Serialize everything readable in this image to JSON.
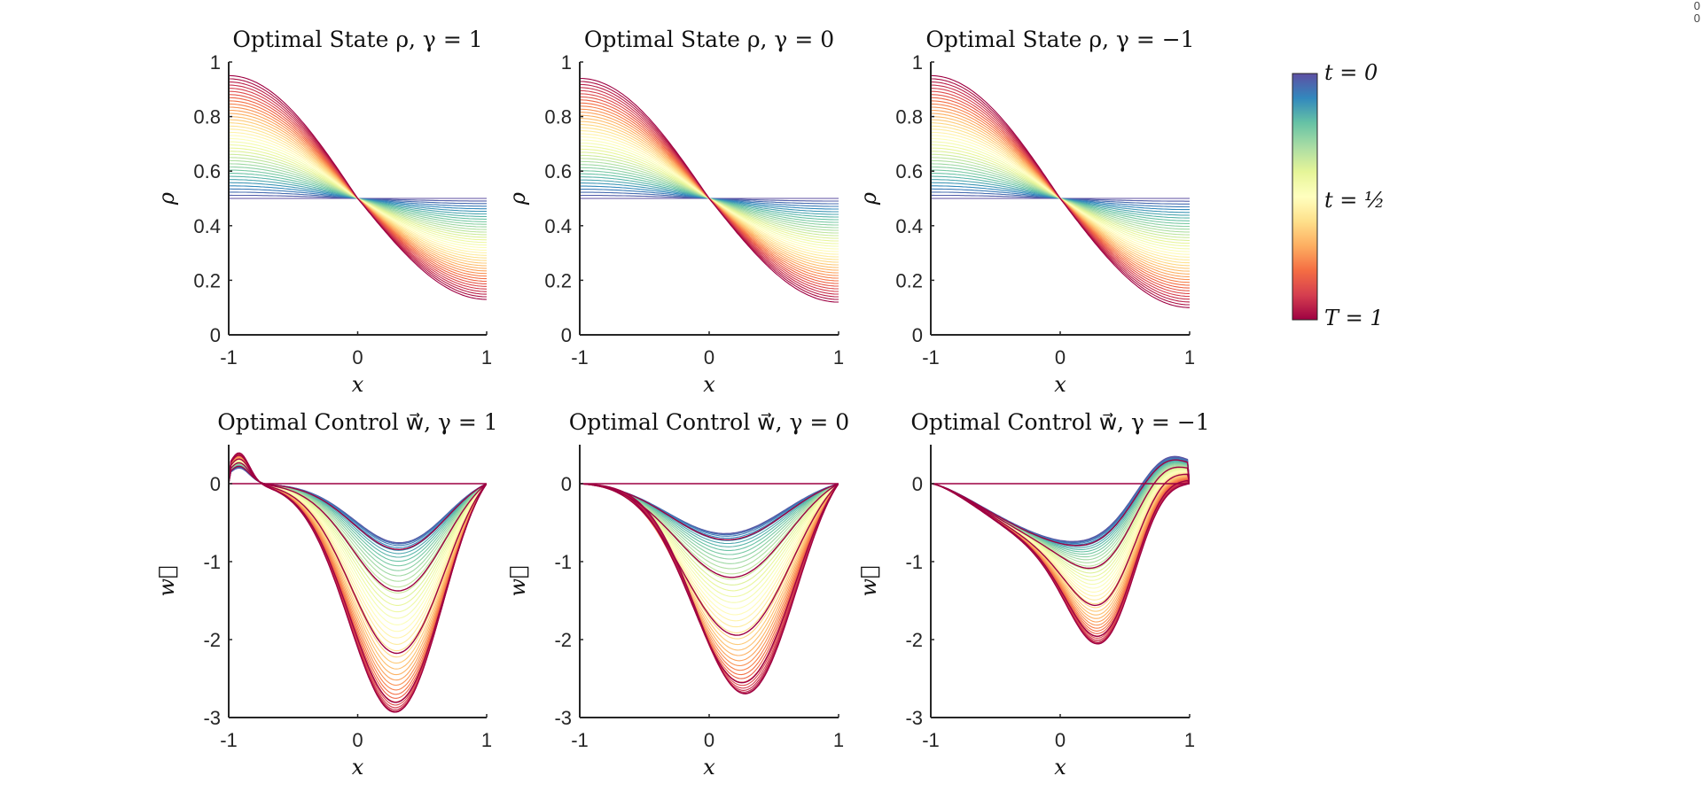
{
  "colormap": [
    "#5e4fa2",
    "#3288bd",
    "#66c2a5",
    "#abdda4",
    "#e6f598",
    "#ffffbf",
    "#fee08b",
    "#fdae61",
    "#f46d43",
    "#d53e4f",
    "#9e0142"
  ],
  "colorbar": {
    "labels": [
      "t = 0",
      "t = ½",
      "T = 1"
    ]
  },
  "corner_marks": [
    "0",
    "0"
  ],
  "chart_data": [
    {
      "type": "line",
      "title": "Optimal State ρ, γ = 1",
      "xlabel": "x",
      "ylabel": "ρ",
      "xlim": [
        -1,
        1
      ],
      "ylim": [
        0,
        1
      ],
      "xticks": [
        -1,
        0,
        1
      ],
      "yticks": [
        0,
        0.2,
        0.4,
        0.6,
        0.8,
        1
      ],
      "ytick_labels": [
        "0",
        "0.2",
        "0.4",
        "0.6",
        "0.8",
        "1"
      ],
      "xtick_labels": [
        "-1",
        "0",
        "1"
      ],
      "series_count": 40,
      "x_range": [
        -1,
        1
      ],
      "initial_curve": "constant 0.5",
      "final_curve": {
        "left_value": 0.95,
        "right_value": 0.13,
        "crossing": [
          0,
          0.5
        ]
      }
    },
    {
      "type": "line",
      "title": "Optimal State ρ, γ = 0",
      "xlabel": "x",
      "ylabel": "ρ",
      "xlim": [
        -1,
        1
      ],
      "ylim": [
        0,
        1
      ],
      "xticks": [
        -1,
        0,
        1
      ],
      "yticks": [
        0,
        0.2,
        0.4,
        0.6,
        0.8,
        1
      ],
      "ytick_labels": [
        "0",
        "0.2",
        "0.4",
        "0.6",
        "0.8",
        "1"
      ],
      "xtick_labels": [
        "-1",
        "0",
        "1"
      ],
      "series_count": 40,
      "x_range": [
        -1,
        1
      ],
      "initial_curve": "constant 0.5",
      "final_curve": {
        "left_value": 0.94,
        "right_value": 0.12,
        "crossing": [
          0,
          0.5
        ]
      }
    },
    {
      "type": "line",
      "title": "Optimal State ρ, γ = −1",
      "xlabel": "x",
      "ylabel": "ρ",
      "xlim": [
        -1,
        1
      ],
      "ylim": [
        0,
        1
      ],
      "xticks": [
        -1,
        0,
        1
      ],
      "yticks": [
        0,
        0.2,
        0.4,
        0.6,
        0.8,
        1
      ],
      "ytick_labels": [
        "0",
        "0.2",
        "0.4",
        "0.6",
        "0.8",
        "1"
      ],
      "xtick_labels": [
        "-1",
        "0",
        "1"
      ],
      "series_count": 40,
      "x_range": [
        -1,
        1
      ],
      "initial_curve": "constant 0.5",
      "final_curve": {
        "left_value": 0.95,
        "right_value": 0.1,
        "crossing": [
          0,
          0.5
        ]
      }
    },
    {
      "type": "line",
      "title": "Optimal Control w⃗, γ = 1",
      "xlabel": "x",
      "ylabel": "w⃗",
      "xlim": [
        -1,
        1
      ],
      "ylim": [
        -3,
        0.5
      ],
      "xticks": [
        -1,
        0,
        1
      ],
      "yticks": [
        -3,
        -2,
        -1,
        0
      ],
      "ytick_labels": [
        "-3",
        "-2",
        "-1",
        "0"
      ],
      "xtick_labels": [
        "-1",
        "0",
        "1"
      ],
      "series_count": 40,
      "x_range": [
        -1,
        1
      ],
      "early_minimum": [
        0.5,
        -0.75
      ],
      "peak_minimum": [
        0.4,
        -2.95
      ],
      "left_bump": [
        -0.93,
        0.35
      ],
      "end_values": [
        0,
        0
      ]
    },
    {
      "type": "line",
      "title": "Optimal Control w⃗, γ = 0",
      "xlabel": "x",
      "ylabel": "w⃗",
      "xlim": [
        -1,
        1
      ],
      "ylim": [
        -3,
        0.5
      ],
      "xticks": [
        -1,
        0,
        1
      ],
      "yticks": [
        -3,
        -2,
        -1,
        0
      ],
      "ytick_labels": [
        "-3",
        "-2",
        "-1",
        "0"
      ],
      "xtick_labels": [
        "-1",
        "0",
        "1"
      ],
      "series_count": 40,
      "x_range": [
        -1,
        1
      ],
      "early_minimum": [
        0.25,
        -0.63
      ],
      "peak_minimum": [
        0.38,
        -2.55
      ],
      "end_values": [
        0,
        0
      ]
    },
    {
      "type": "line",
      "title": "Optimal Control w⃗, γ = −1",
      "xlabel": "x",
      "ylabel": "w⃗",
      "xlim": [
        -1,
        1
      ],
      "ylim": [
        -3,
        0.5
      ],
      "xticks": [
        -1,
        0,
        1
      ],
      "yticks": [
        -3,
        -2,
        -1,
        0
      ],
      "ytick_labels": [
        "-3",
        "-2",
        "-1",
        "0"
      ],
      "xtick_labels": [
        "-1",
        "0",
        "1"
      ],
      "series_count": 40,
      "x_range": [
        -1,
        1
      ],
      "early_maximum": [
        0.9,
        0.25
      ],
      "peak_minimum": [
        0.4,
        -2.15
      ],
      "end_values": [
        0,
        0
      ]
    }
  ]
}
